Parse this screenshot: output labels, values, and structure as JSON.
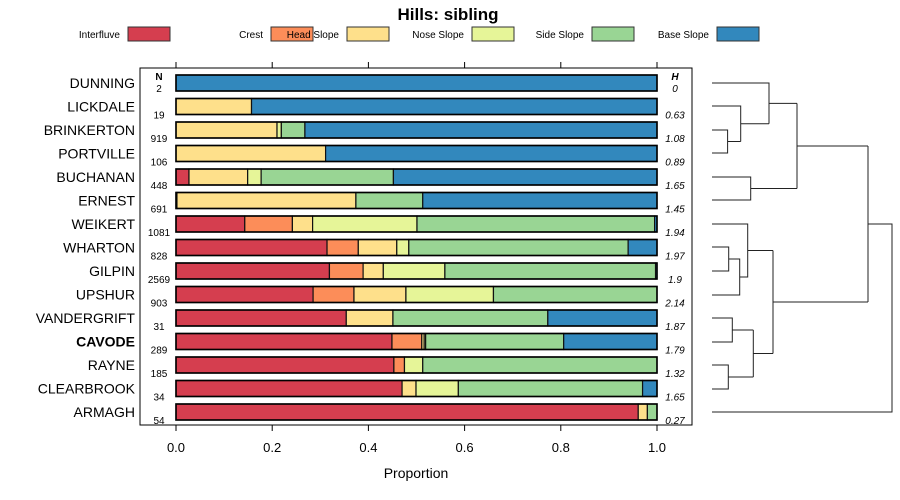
{
  "chart_data": {
    "type": "bar",
    "orientation": "horizontal-stacked",
    "title": "Hills: sibling",
    "xlabel": "Proportion",
    "xlim": [
      0,
      1
    ],
    "xticks": [
      "0.0",
      "0.2",
      "0.4",
      "0.6",
      "0.8",
      "1.0"
    ],
    "xtick_values": [
      0,
      0.2,
      0.4,
      0.6,
      0.8,
      1.0
    ],
    "n_header": "N",
    "h_header": "H",
    "legend_placement": "top",
    "series": [
      {
        "name": "Interfluve",
        "color": "#D53E4F"
      },
      {
        "name": "Crest",
        "color": "#FC8D59"
      },
      {
        "name": "Head Slope",
        "color": "#FEE08B"
      },
      {
        "name": "Nose Slope",
        "color": "#E6F598"
      },
      {
        "name": "Side Slope",
        "color": "#99D594"
      },
      {
        "name": "Base Slope",
        "color": "#3288BD"
      }
    ],
    "rows": [
      {
        "name": "DUNNING",
        "n": "2",
        "h": "0",
        "bold": false,
        "values": [
          0,
          0,
          0,
          0,
          0,
          1.0
        ]
      },
      {
        "name": "LICKDALE",
        "n": "19",
        "h": "0.63",
        "bold": false,
        "values": [
          0,
          0,
          0.157,
          0,
          0,
          0.843
        ]
      },
      {
        "name": "BRINKERTON",
        "n": "919",
        "h": "1.08",
        "bold": false,
        "values": [
          0,
          0,
          0.21,
          0.009,
          0.049,
          0.732
        ]
      },
      {
        "name": "PORTVILLE",
        "n": "106",
        "h": "0.89",
        "bold": false,
        "values": [
          0,
          0,
          0.311,
          0,
          0,
          0.689
        ]
      },
      {
        "name": "BUCHANAN",
        "n": "448",
        "h": "1.65",
        "bold": false,
        "values": [
          0.027,
          0,
          0.122,
          0.028,
          0.275,
          0.548
        ]
      },
      {
        "name": "ERNEST",
        "n": "691",
        "h": "1.45",
        "bold": false,
        "values": [
          0.002,
          0,
          0.372,
          0,
          0.139,
          0.487
        ]
      },
      {
        "name": "WEIKERT",
        "n": "1081",
        "h": "1.94",
        "bold": false,
        "values": [
          0.143,
          0.099,
          0.042,
          0.217,
          0.494,
          0.005
        ]
      },
      {
        "name": "WHARTON",
        "n": "828",
        "h": "1.97",
        "bold": false,
        "values": [
          0.314,
          0.065,
          0.08,
          0.025,
          0.456,
          0.06
        ]
      },
      {
        "name": "GILPIN",
        "n": "2569",
        "h": "1.9",
        "bold": false,
        "values": [
          0.319,
          0.07,
          0.042,
          0.128,
          0.438,
          0.003
        ]
      },
      {
        "name": "UPSHUR",
        "n": "903",
        "h": "2.14",
        "bold": false,
        "values": [
          0.285,
          0.085,
          0.108,
          0.182,
          0.34,
          0
        ]
      },
      {
        "name": "VANDERGRIFT",
        "n": "31",
        "h": "1.87",
        "bold": false,
        "values": [
          0.354,
          0,
          0.097,
          0,
          0.322,
          0.227
        ]
      },
      {
        "name": "CAVODE",
        "n": "289",
        "h": "1.79",
        "bold": true,
        "values": [
          0.449,
          0.062,
          0.005,
          0.003,
          0.287,
          0.194
        ]
      },
      {
        "name": "RAYNE",
        "n": "185",
        "h": "1.32",
        "bold": false,
        "values": [
          0.453,
          0.022,
          0,
          0.038,
          0.487,
          0
        ]
      },
      {
        "name": "CLEARBROOK",
        "n": "34",
        "h": "1.65",
        "bold": false,
        "values": [
          0.47,
          0,
          0.029,
          0.088,
          0.383,
          0.03
        ]
      },
      {
        "name": "ARMAGH",
        "n": "54",
        "h": "0.27",
        "bold": false,
        "values": [
          0.961,
          0,
          0.019,
          0,
          0.02,
          0
        ]
      }
    ]
  }
}
